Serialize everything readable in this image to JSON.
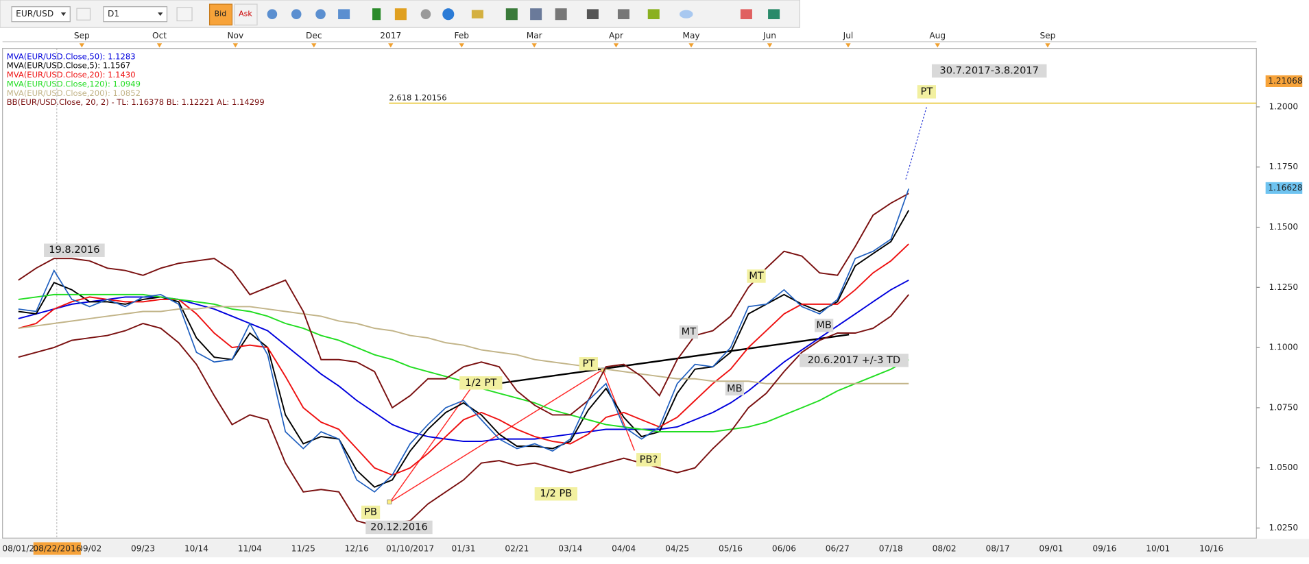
{
  "toolbar": {
    "symbol": "EUR/USD",
    "timeframe": "D1",
    "bid": "Bid",
    "ask": "Ask"
  },
  "chart_data": {
    "type": "line",
    "months": [
      "Sep",
      "Oct",
      "Nov",
      "Dec",
      "2017",
      "Feb",
      "Mar",
      "Apr",
      "May",
      "Jun",
      "Jul",
      "Aug",
      "Sep"
    ],
    "cursor_label": "08/22/2016",
    "categories": [
      "08/01/2",
      null,
      null,
      null,
      "09/02",
      null,
      null,
      "09/23",
      null,
      null,
      "10/14",
      null,
      null,
      "11/04",
      null,
      null,
      "11/25",
      null,
      null,
      "12/16",
      null,
      null,
      "01/10/2017",
      null,
      null,
      "01/31",
      null,
      null,
      "02/21",
      null,
      null,
      "03/14",
      null,
      null,
      "04/04",
      null,
      null,
      "04/25",
      null,
      null,
      "05/16",
      null,
      null,
      "06/06",
      null,
      null,
      "06/27",
      null,
      null,
      "07/18",
      null,
      null,
      "08/02",
      null,
      null,
      "08/17",
      null,
      null,
      "09/01",
      null,
      null,
      "09/16",
      null,
      null,
      "10/01",
      null,
      null,
      "10/16"
    ],
    "price": {
      "color": "#1f5fbf",
      "values": [
        1.116,
        1.115,
        1.132,
        1.12,
        1.117,
        1.12,
        1.117,
        1.121,
        1.122,
        1.118,
        1.098,
        1.094,
        1.095,
        1.11,
        1.097,
        1.065,
        1.058,
        1.065,
        1.062,
        1.045,
        1.04,
        1.047,
        1.06,
        1.068,
        1.075,
        1.078,
        1.07,
        1.062,
        1.058,
        1.06,
        1.057,
        1.062,
        1.078,
        1.085,
        1.067,
        1.062,
        1.067,
        1.085,
        1.093,
        1.092,
        1.1,
        1.117,
        1.118,
        1.124,
        1.117,
        1.114,
        1.12,
        1.137,
        1.14,
        1.145,
        1.166,
        null,
        null,
        null,
        null,
        null,
        null,
        null,
        null,
        null,
        null,
        null,
        null,
        null,
        null,
        null,
        null,
        null
      ]
    },
    "series": [
      {
        "name": "MVA(EUR/USD.Close,50): 1.1283",
        "color": "#0000dd",
        "values": [
          1.112,
          1.114,
          1.116,
          1.118,
          1.119,
          1.12,
          1.121,
          1.121,
          1.121,
          1.12,
          1.118,
          1.116,
          1.113,
          1.11,
          1.107,
          1.101,
          1.095,
          1.089,
          1.084,
          1.078,
          1.073,
          1.068,
          1.065,
          1.063,
          1.062,
          1.061,
          1.061,
          1.062,
          1.062,
          1.062,
          1.063,
          1.064,
          1.065,
          1.066,
          1.066,
          1.066,
          1.066,
          1.067,
          1.07,
          1.073,
          1.077,
          1.082,
          1.088,
          1.094,
          1.099,
          1.104,
          1.109,
          1.114,
          1.119,
          1.124,
          1.128,
          null,
          null,
          null,
          null,
          null,
          null,
          null,
          null,
          null,
          null,
          null,
          null,
          null,
          null,
          null,
          null,
          null
        ]
      },
      {
        "name": "MVA(EUR/USD.Close,5): 1.1567",
        "color": "#000000",
        "values": [
          1.115,
          1.114,
          1.127,
          1.124,
          1.119,
          1.119,
          1.118,
          1.12,
          1.121,
          1.119,
          1.104,
          1.096,
          1.095,
          1.106,
          1.1,
          1.072,
          1.06,
          1.063,
          1.062,
          1.049,
          1.042,
          1.045,
          1.057,
          1.066,
          1.073,
          1.077,
          1.072,
          1.064,
          1.059,
          1.059,
          1.058,
          1.061,
          1.074,
          1.083,
          1.071,
          1.063,
          1.065,
          1.081,
          1.091,
          1.092,
          1.098,
          1.114,
          1.118,
          1.122,
          1.118,
          1.115,
          1.119,
          1.134,
          1.139,
          1.144,
          1.157,
          null,
          null,
          null,
          null,
          null,
          null,
          null,
          null,
          null,
          null,
          null,
          null,
          null,
          null,
          null,
          null,
          null
        ]
      },
      {
        "name": "MVA(EUR/USD.Close,20): 1.1430",
        "color": "#ee1111",
        "values": [
          1.108,
          1.11,
          1.116,
          1.119,
          1.121,
          1.12,
          1.119,
          1.119,
          1.12,
          1.12,
          1.114,
          1.106,
          1.1,
          1.101,
          1.1,
          1.088,
          1.075,
          1.069,
          1.066,
          1.058,
          1.05,
          1.047,
          1.05,
          1.056,
          1.063,
          1.07,
          1.073,
          1.07,
          1.066,
          1.063,
          1.061,
          1.06,
          1.064,
          1.071,
          1.073,
          1.07,
          1.067,
          1.071,
          1.078,
          1.085,
          1.091,
          1.1,
          1.107,
          1.114,
          1.118,
          1.118,
          1.118,
          1.124,
          1.131,
          1.136,
          1.143,
          null,
          null,
          null,
          null,
          null,
          null,
          null,
          null,
          null,
          null,
          null,
          null,
          null,
          null,
          null,
          null,
          null
        ]
      },
      {
        "name": "MVA(EUR/USD.Close,120): 1.0949",
        "color": "#22dd22",
        "values": [
          1.12,
          1.121,
          1.122,
          1.122,
          1.122,
          1.122,
          1.122,
          1.122,
          1.121,
          1.12,
          1.119,
          1.118,
          1.116,
          1.115,
          1.113,
          1.11,
          1.108,
          1.105,
          1.103,
          1.1,
          1.097,
          1.095,
          1.092,
          1.09,
          1.088,
          1.086,
          1.083,
          1.081,
          1.079,
          1.077,
          1.074,
          1.072,
          1.07,
          1.068,
          1.067,
          1.066,
          1.065,
          1.065,
          1.065,
          1.065,
          1.066,
          1.067,
          1.069,
          1.072,
          1.075,
          1.078,
          1.082,
          1.085,
          1.088,
          1.091,
          1.095,
          null,
          null,
          null,
          null,
          null,
          null,
          null,
          null,
          null,
          null,
          null,
          null,
          null,
          null,
          null,
          null,
          null
        ]
      },
      {
        "name": "MVA(EUR/USD.Close,200): 1.0852",
        "color": "#c2b488",
        "values": [
          1.108,
          1.109,
          1.11,
          1.111,
          1.112,
          1.113,
          1.114,
          1.115,
          1.115,
          1.116,
          1.116,
          1.117,
          1.117,
          1.117,
          1.116,
          1.115,
          1.114,
          1.113,
          1.111,
          1.11,
          1.108,
          1.107,
          1.105,
          1.104,
          1.102,
          1.101,
          1.099,
          1.098,
          1.097,
          1.095,
          1.094,
          1.093,
          1.092,
          1.091,
          1.09,
          1.089,
          1.088,
          1.087,
          1.087,
          1.086,
          1.086,
          1.086,
          1.085,
          1.085,
          1.085,
          1.085,
          1.085,
          1.085,
          1.085,
          1.085,
          1.085,
          null,
          null,
          null,
          null,
          null,
          null,
          null,
          null,
          null,
          null,
          null,
          null,
          null,
          null,
          null,
          null,
          null
        ]
      },
      {
        "name": "BB(EUR/USD.Close, 20, 2) -  TL: 1.16378  BL: 1.12221  AL: 1.14299",
        "color": "#7a1010",
        "values": [
          1.128,
          1.133,
          1.137,
          1.137,
          1.136,
          1.133,
          1.132,
          1.13,
          1.133,
          1.135,
          1.136,
          1.137,
          1.132,
          1.122,
          1.125,
          1.128,
          1.115,
          1.095,
          1.095,
          1.094,
          1.09,
          1.075,
          1.08,
          1.087,
          1.087,
          1.092,
          1.094,
          1.092,
          1.082,
          1.076,
          1.072,
          1.072,
          1.078,
          1.092,
          1.093,
          1.088,
          1.08,
          1.095,
          1.105,
          1.107,
          1.113,
          1.125,
          1.133,
          1.14,
          1.138,
          1.131,
          1.13,
          1.142,
          1.155,
          1.16,
          1.164,
          null,
          null,
          null,
          null,
          null,
          null,
          null,
          null,
          null,
          null,
          null,
          null,
          null,
          null,
          null,
          null,
          null
        ],
        "lower": [
          1.096,
          1.098,
          1.1,
          1.103,
          1.104,
          1.105,
          1.107,
          1.11,
          1.108,
          1.102,
          1.093,
          1.08,
          1.068,
          1.072,
          1.07,
          1.052,
          1.04,
          1.041,
          1.04,
          1.028,
          1.026,
          1.027,
          1.028,
          1.035,
          1.04,
          1.045,
          1.052,
          1.053,
          1.051,
          1.052,
          1.05,
          1.048,
          1.05,
          1.052,
          1.054,
          1.052,
          1.05,
          1.048,
          1.05,
          1.058,
          1.065,
          1.075,
          1.081,
          1.09,
          1.098,
          1.103,
          1.106,
          1.106,
          1.108,
          1.113,
          1.122,
          null,
          null,
          null,
          null,
          null,
          null,
          null,
          null,
          null,
          null,
          null,
          null,
          null,
          null,
          null,
          null,
          null
        ]
      }
    ],
    "ylim": [
      1.0208,
      1.2243
    ],
    "yticks": [
      {
        "value": 1.025,
        "label": "1.0250"
      },
      {
        "value": 1.05,
        "label": "1.0500"
      },
      {
        "value": 1.075,
        "label": "1.0750"
      },
      {
        "value": 1.1,
        "label": "1.1000"
      },
      {
        "value": 1.125,
        "label": "1.1250"
      },
      {
        "value": 1.15,
        "label": "1.1500"
      },
      {
        "value": 1.175,
        "label": "1.1750"
      },
      {
        "value": 1.2,
        "label": "1.2000"
      }
    ],
    "fib_level": {
      "label": "2.618",
      "value": 1.20156,
      "color": "#e6c020"
    },
    "price_tags": [
      {
        "value": 1.21068,
        "color": "#f7a33a"
      },
      {
        "value": 1.16628,
        "color": "#6ec3f0"
      }
    ],
    "annotations": [
      "19.8.2016",
      "PB",
      "20.12.2016",
      "1/2 PT",
      "PT",
      "1/2 PB",
      "PB?",
      "MT",
      "MT",
      "MB",
      "MB",
      "20.6.2017 +/-3 TD",
      "30.7.2017-3.8.2017",
      "PT"
    ]
  }
}
